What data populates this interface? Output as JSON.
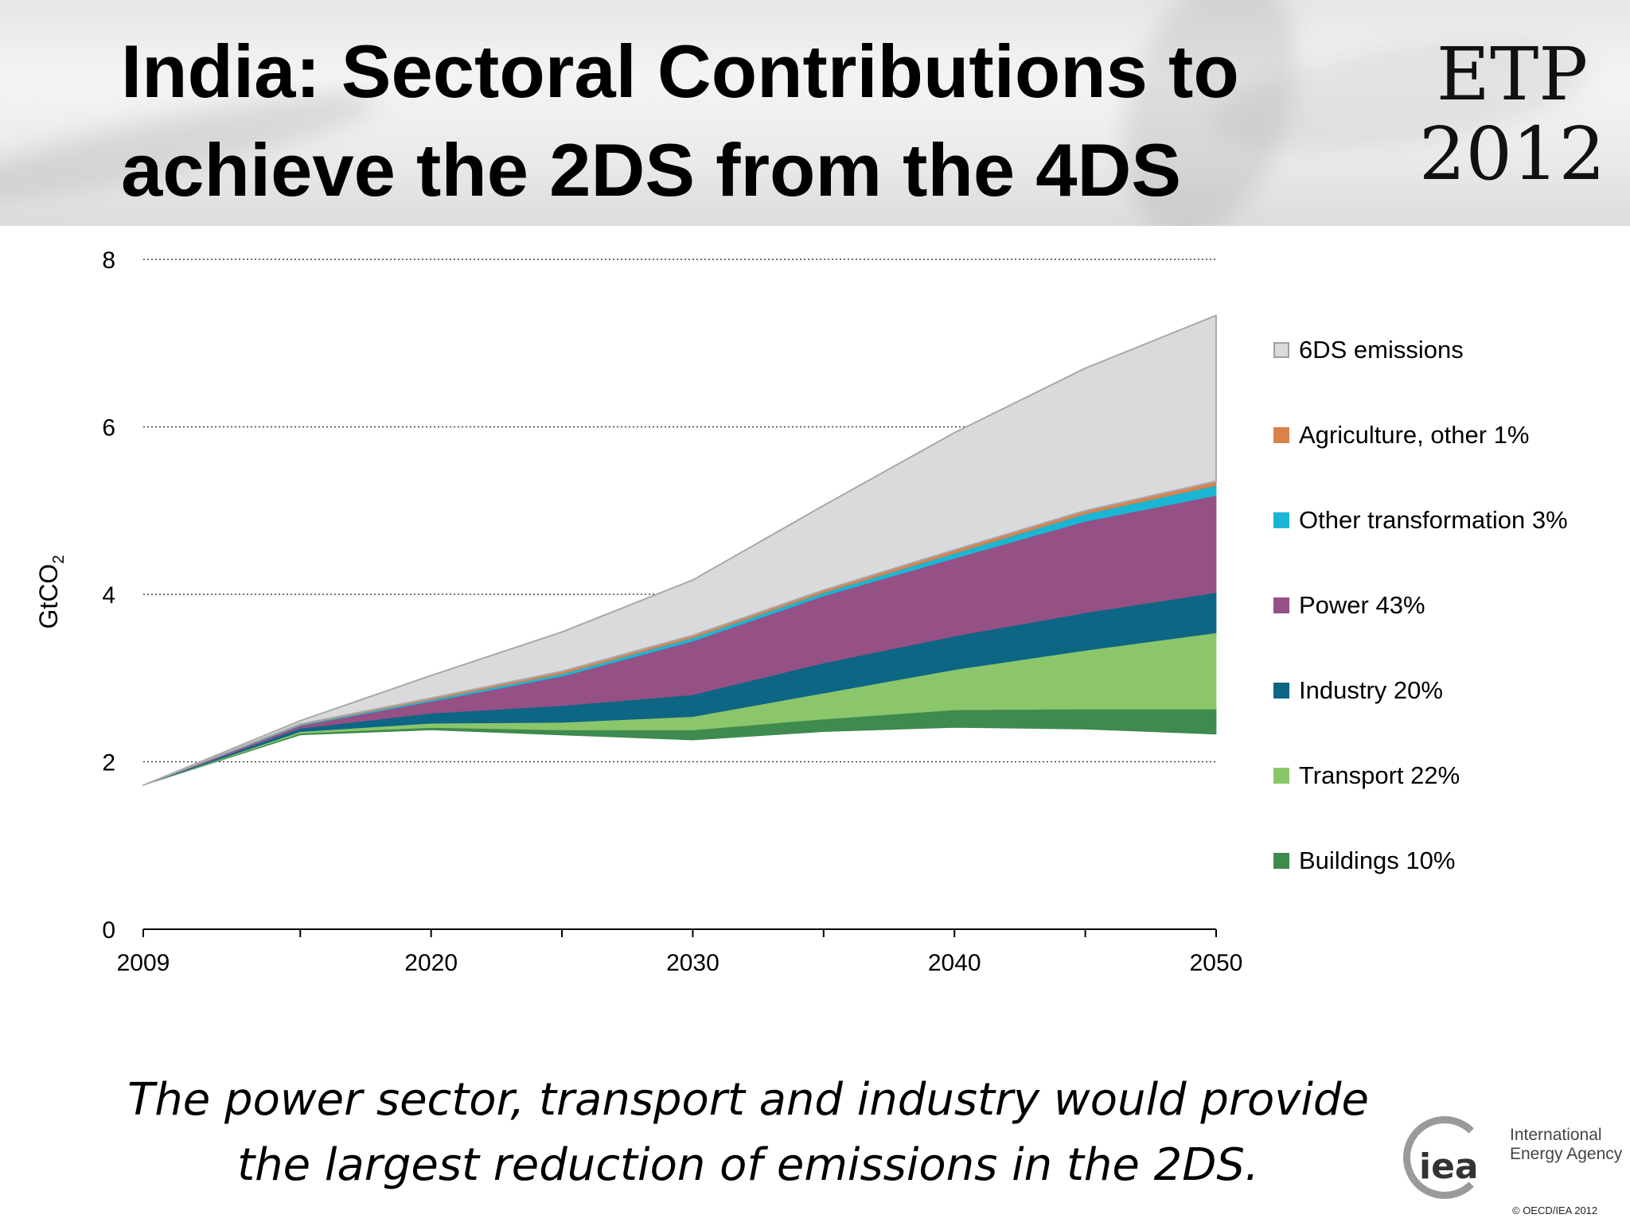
{
  "header": {
    "title_line1": "India: Sectoral Contributions to",
    "title_line2": "achieve the 2DS from the 4DS",
    "logo_line1": "ETP",
    "logo_line2": "2012"
  },
  "chart_data": {
    "type": "area",
    "ylabel": "GtCO",
    "ylabel_sub": "2",
    "ylim": [
      0,
      8
    ],
    "yticks": [
      0,
      2,
      4,
      6,
      8
    ],
    "xlim": [
      2009,
      2050
    ],
    "xtick_labels": [
      "2009",
      "2020",
      "2030",
      "2040",
      "2050"
    ],
    "grid": "horizontal dotted",
    "x": [
      2009,
      2015,
      2020,
      2025,
      2030,
      2035,
      2040,
      2045,
      2050
    ],
    "series": [
      {
        "name": "Buildings 10%",
        "color": "#3f8a4f",
        "lower": [
          1.72,
          2.32,
          2.38,
          2.32,
          2.26,
          2.36,
          2.41,
          2.39,
          2.33
        ],
        "upper": [
          1.72,
          2.34,
          2.41,
          2.38,
          2.38,
          2.51,
          2.62,
          2.63,
          2.63
        ]
      },
      {
        "name": "Transport 22%",
        "color": "#8cc66a",
        "lower": [
          1.72,
          2.34,
          2.41,
          2.38,
          2.38,
          2.51,
          2.62,
          2.63,
          2.63
        ],
        "upper": [
          1.72,
          2.36,
          2.46,
          2.47,
          2.54,
          2.82,
          3.1,
          3.33,
          3.54
        ]
      },
      {
        "name": "Industry 20%",
        "color": "#0e6685",
        "lower": [
          1.72,
          2.36,
          2.46,
          2.47,
          2.54,
          2.82,
          3.1,
          3.33,
          3.54
        ],
        "upper": [
          1.72,
          2.4,
          2.58,
          2.67,
          2.8,
          3.18,
          3.5,
          3.78,
          4.02
        ]
      },
      {
        "name": "Power 43%",
        "color": "#955085",
        "lower": [
          1.72,
          2.4,
          2.58,
          2.67,
          2.8,
          3.18,
          3.5,
          3.78,
          4.02
        ],
        "upper": [
          1.72,
          2.43,
          2.72,
          3.02,
          3.44,
          3.98,
          4.43,
          4.87,
          5.18
        ]
      },
      {
        "name": "Other transformation 3%",
        "color": "#1ab6d3",
        "lower": [
          1.72,
          2.43,
          2.72,
          3.02,
          3.44,
          3.98,
          4.43,
          4.87,
          5.18
        ],
        "upper": [
          1.72,
          2.44,
          2.74,
          3.05,
          3.48,
          4.02,
          4.49,
          4.96,
          5.3
        ]
      },
      {
        "name": "Agriculture, other 1%",
        "color": "#d9824a",
        "lower": [
          1.72,
          2.44,
          2.74,
          3.05,
          3.48,
          4.02,
          4.49,
          4.96,
          5.3
        ],
        "upper": [
          1.72,
          2.45,
          2.76,
          3.08,
          3.51,
          4.05,
          4.53,
          5.0,
          5.35
        ]
      },
      {
        "name": "6DS emissions",
        "color": "#dadadc",
        "lower": [
          1.72,
          2.45,
          2.76,
          3.08,
          3.51,
          4.05,
          4.53,
          5.0,
          5.35
        ],
        "upper": [
          1.72,
          2.49,
          3.03,
          3.55,
          4.17,
          5.06,
          5.93,
          6.7,
          7.33
        ]
      }
    ],
    "legend": {
      "placement": "right",
      "order": [
        "6DS emissions",
        "Agriculture, other 1%",
        "Other transformation 3%",
        "Power 43%",
        "Industry 20%",
        "Transport 22%",
        "Buildings 10%"
      ]
    }
  },
  "caption": {
    "line1": "The power sector, transport and industry would provide",
    "line2": "the largest reduction of emissions in the 2DS."
  },
  "footer": {
    "logo_mark": "iea",
    "logo_name_line1": "International",
    "logo_name_line2": "Energy Agency",
    "copyright": "© OECD/IEA 2012"
  }
}
